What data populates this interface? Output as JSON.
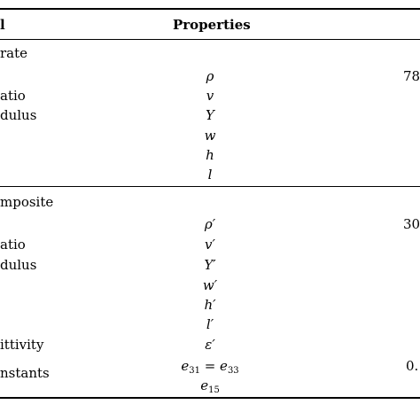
{
  "header": {
    "col1": "l",
    "col2": "Properties"
  },
  "sections": [
    {
      "title": "rate",
      "rows": [
        {
          "label": "",
          "symbol": "ρ",
          "value": "78"
        },
        {
          "label": "atio",
          "symbol": "v",
          "value": ""
        },
        {
          "label": "dulus",
          "symbol": "Y",
          "value": ""
        },
        {
          "label": "",
          "symbol": "w",
          "value": ""
        },
        {
          "label": "",
          "symbol": "h",
          "value": ""
        },
        {
          "label": "",
          "symbol": "l",
          "value": ""
        }
      ]
    },
    {
      "title": "mposite",
      "rows": [
        {
          "label": "",
          "symbol": "ρ′",
          "value": "30"
        },
        {
          "label": "atio",
          "symbol": "v′",
          "value": ""
        },
        {
          "label": "dulus",
          "symbol": "Y′",
          "value": ""
        },
        {
          "label": "",
          "symbol": "w′",
          "value": ""
        },
        {
          "label": "",
          "symbol": "h′",
          "value": ""
        },
        {
          "label": "",
          "symbol": "l′",
          "value": ""
        },
        {
          "label": "ittivity",
          "symbol": "ε′",
          "value": ""
        },
        {
          "label": "nstants",
          "symbol_parts": [
            "e",
            "31",
            " = ",
            "e",
            "33"
          ],
          "value": "0."
        },
        {
          "label": "",
          "symbol_parts": [
            "e",
            "15"
          ],
          "value": ""
        }
      ]
    }
  ]
}
